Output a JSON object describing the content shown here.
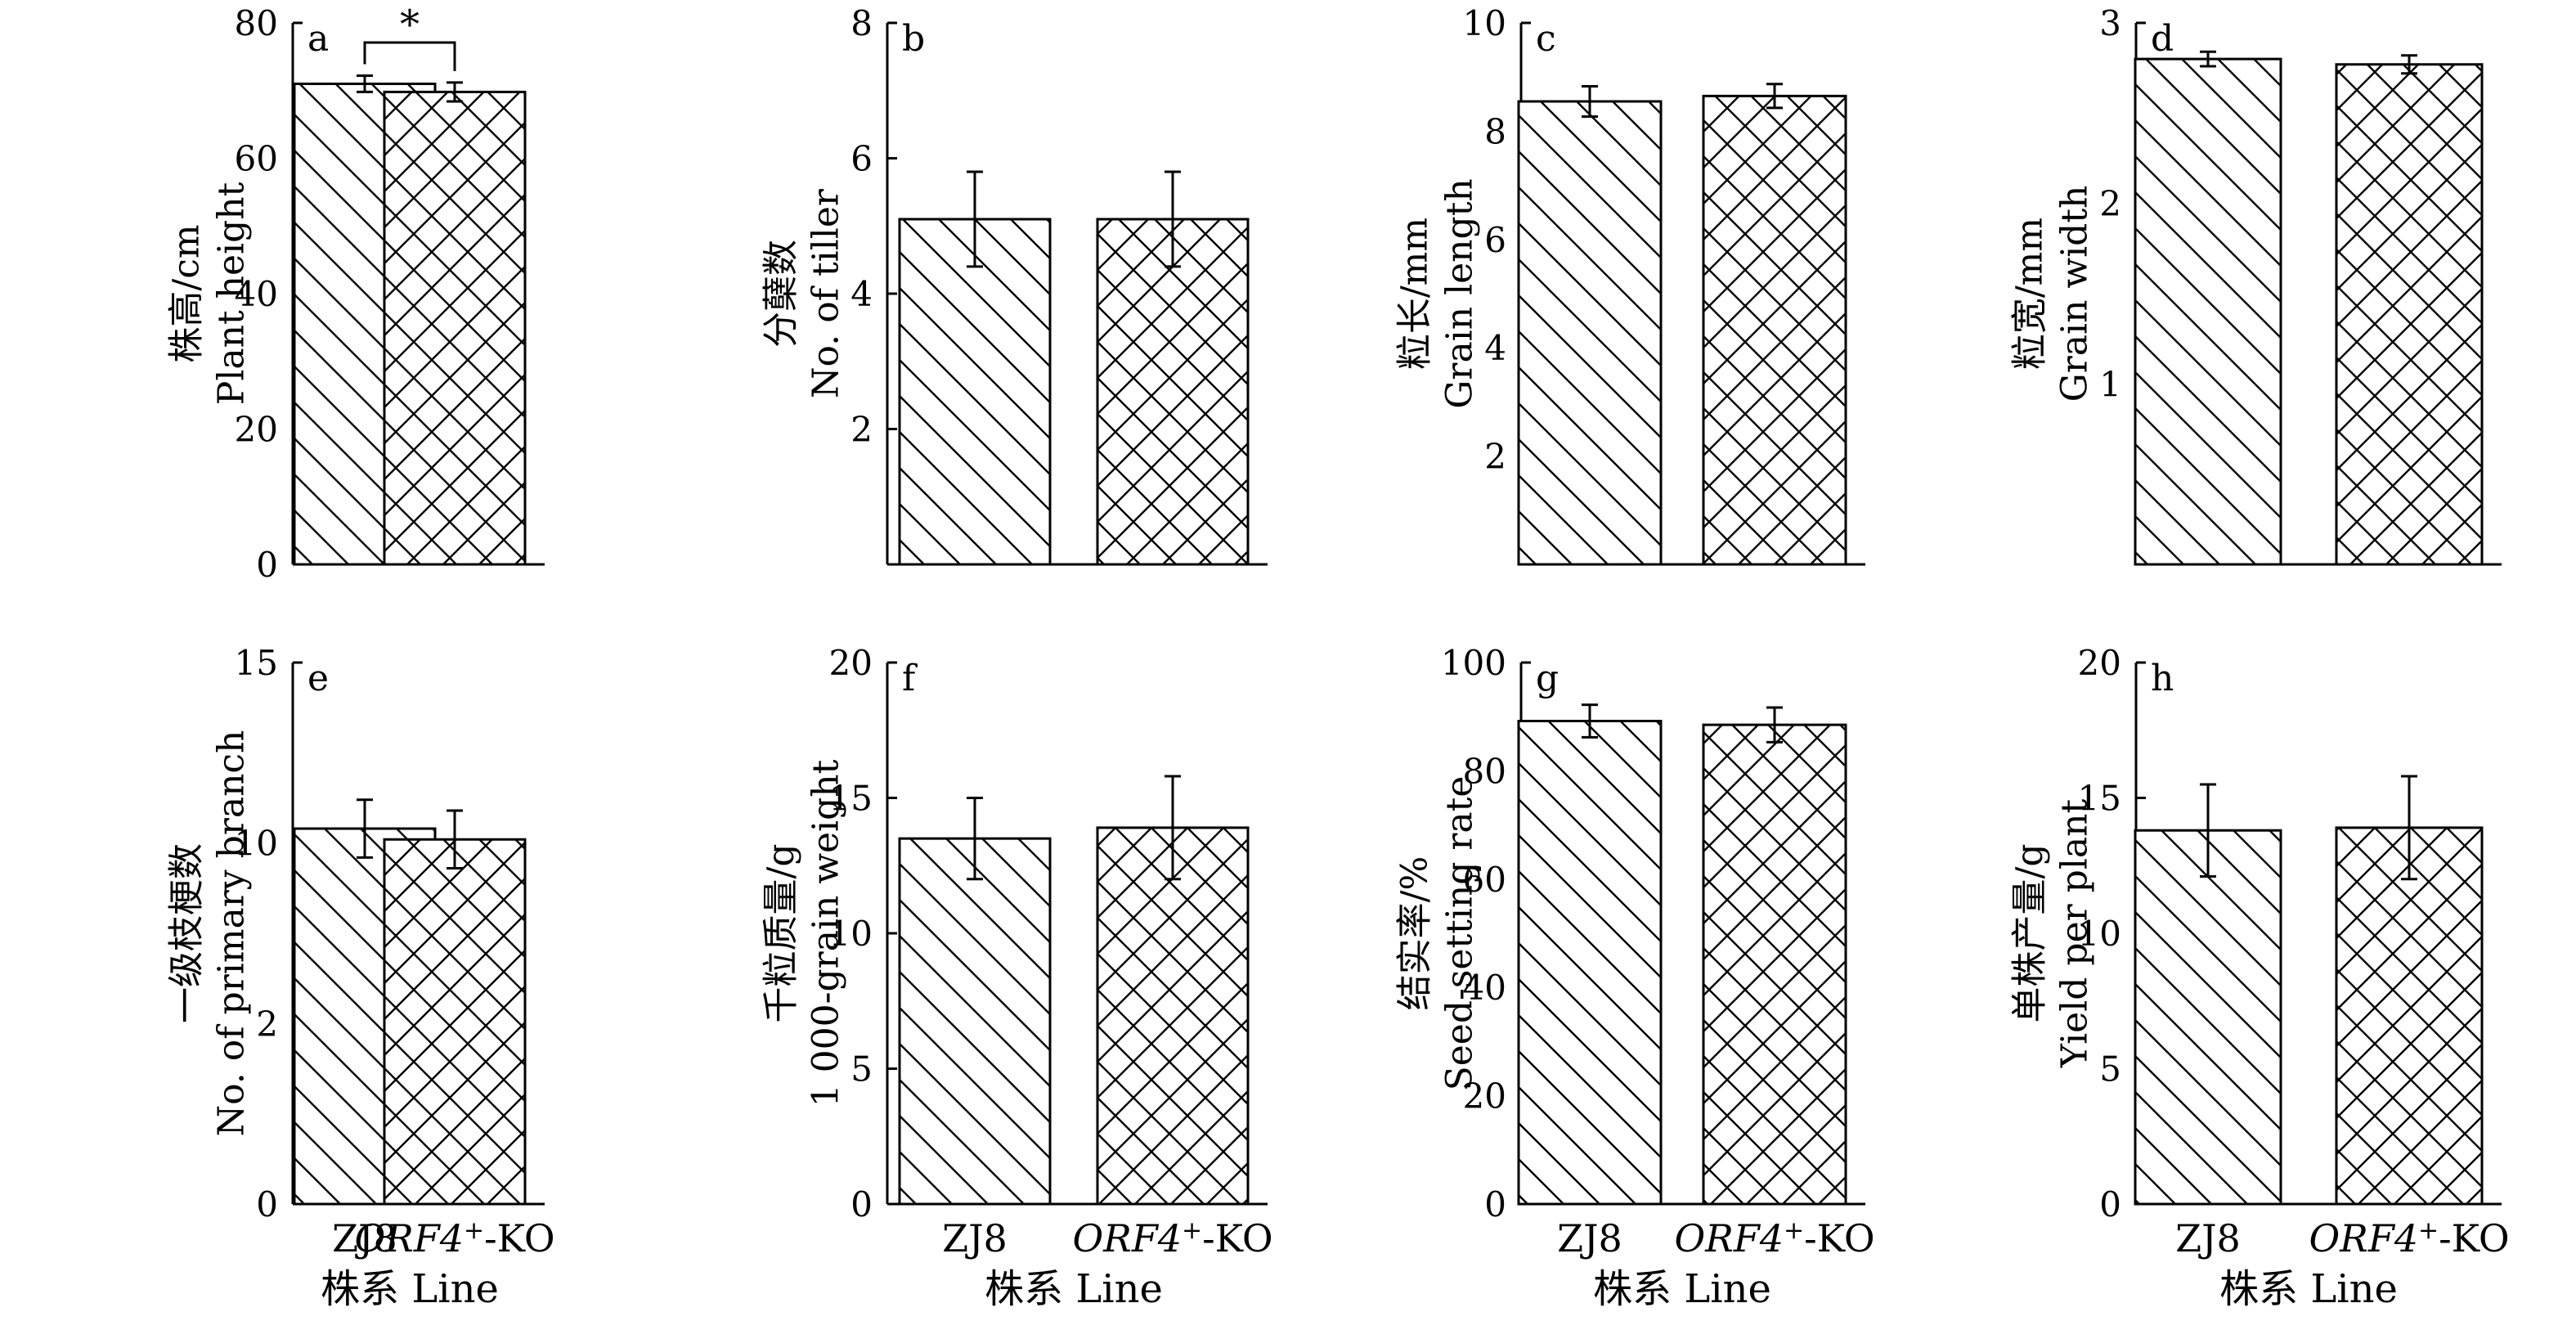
{
  "chart_data": [
    {
      "type": "bar",
      "panel_label": "a",
      "categories": [
        "ZJ8",
        "ORF4+-KO"
      ],
      "values": [
        71.0,
        69.8
      ],
      "errors": [
        1.2,
        1.4
      ],
      "ylabel_cn": "株高/cm",
      "ylabel_en": "Plant height",
      "ylim": [
        0,
        80
      ],
      "yticks": [
        "0",
        "20",
        "40",
        "60",
        "80"
      ],
      "significance": "*",
      "patterns": [
        "diagonal",
        "crosshatch"
      ],
      "grid": false
    },
    {
      "type": "bar",
      "panel_label": "b",
      "categories": [
        "ZJ8",
        "ORF4+-KO"
      ],
      "values": [
        5.1,
        5.1
      ],
      "errors": [
        0.7,
        0.7
      ],
      "ylabel_cn": "分蘖数",
      "ylabel_en": "No. of tiller",
      "ylim": [
        0,
        8
      ],
      "yticks": [
        "2",
        "4",
        "6",
        "8"
      ],
      "patterns": [
        "diagonal",
        "crosshatch"
      ],
      "grid": false
    },
    {
      "type": "bar",
      "panel_label": "c",
      "categories": [
        "ZJ8",
        "ORF4+-KO"
      ],
      "values": [
        8.55,
        8.65
      ],
      "errors": [
        0.28,
        0.22
      ],
      "ylabel_cn": "粒长/mm",
      "ylabel_en": "Grain length",
      "ylim": [
        0,
        10
      ],
      "yticks": [
        "2",
        "4",
        "6",
        "8",
        "10"
      ],
      "patterns": [
        "diagonal",
        "crosshatch"
      ],
      "grid": false
    },
    {
      "type": "bar",
      "panel_label": "d",
      "categories": [
        "ZJ8",
        "ORF4+-KO"
      ],
      "values": [
        2.8,
        2.77
      ],
      "errors": [
        0.04,
        0.05
      ],
      "ylabel_cn": "粒宽/mm",
      "ylabel_en": "Grain width",
      "ylim": [
        0,
        3
      ],
      "yticks": [
        "1",
        "2",
        "3"
      ],
      "patterns": [
        "diagonal",
        "crosshatch"
      ],
      "grid": false
    },
    {
      "type": "bar",
      "panel_label": "e",
      "categories": [
        "ZJ8",
        "ORF4+-KO"
      ],
      "values": [
        10.4,
        10.1
      ],
      "errors": [
        0.8,
        0.8
      ],
      "ylabel_cn": "一级枝梗数",
      "ylabel_en": "No. of primary branch",
      "ylim": [
        0,
        15
      ],
      "yticks": [
        "0",
        "2",
        "10",
        "15"
      ],
      "patterns": [
        "diagonal",
        "crosshatch"
      ],
      "grid": false
    },
    {
      "type": "bar",
      "panel_label": "f",
      "categories": [
        "ZJ8",
        "ORF4+-KO"
      ],
      "values": [
        13.5,
        13.9
      ],
      "errors": [
        1.5,
        1.9
      ],
      "ylabel_cn": "千粒质量/g",
      "ylabel_en": "1 000-grain weight",
      "ylim": [
        0,
        20
      ],
      "yticks": [
        "0",
        "5",
        "10",
        "15",
        "20"
      ],
      "patterns": [
        "diagonal",
        "crosshatch"
      ],
      "grid": false
    },
    {
      "type": "bar",
      "panel_label": "g",
      "categories": [
        "ZJ8",
        "ORF4+-KO"
      ],
      "values": [
        89.2,
        88.5
      ],
      "errors": [
        3.0,
        3.2
      ],
      "ylabel_cn": "结实率/%",
      "ylabel_en": "Seed-setting rate",
      "ylim": [
        0,
        100
      ],
      "yticks": [
        "0",
        "20",
        "40",
        "60",
        "80",
        "100"
      ],
      "patterns": [
        "diagonal",
        "crosshatch"
      ],
      "grid": false
    },
    {
      "type": "bar",
      "panel_label": "h",
      "categories": [
        "ZJ8",
        "ORF4+-KO"
      ],
      "values": [
        13.8,
        13.9
      ],
      "errors": [
        1.7,
        1.9
      ],
      "ylabel_cn": "单株产量/g",
      "ylabel_en": "Yield per plant",
      "ylim": [
        0,
        20
      ],
      "yticks": [
        "0",
        "5",
        "10",
        "15",
        "20"
      ],
      "patterns": [
        "diagonal",
        "crosshatch"
      ],
      "grid": false
    }
  ],
  "x_tick_labels": {
    "zj8": "ZJ8",
    "ko_gene": "ORF4",
    "ko_superscript": "+",
    "ko_suffix": "-KO"
  },
  "x_axis_title": "株系 Line",
  "colors": {
    "ink": "#000000",
    "bar_fill": "#ffffff"
  }
}
